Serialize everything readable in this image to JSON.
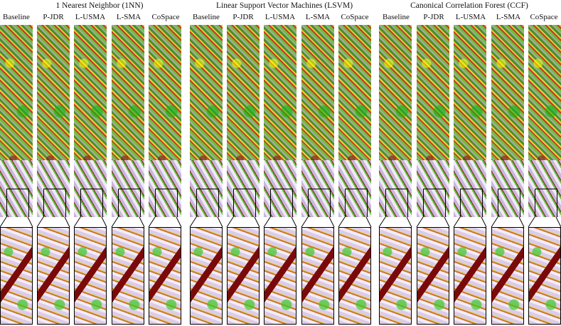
{
  "groups": [
    {
      "title": "1 Nearest Neighbor (1NN)",
      "methods": [
        "Baseline",
        "P-JDR",
        "L-USMA",
        "L-SMA",
        "CoSpace"
      ]
    },
    {
      "title": "Linear Support Vector Machines  (LSVM)",
      "methods": [
        "Baseline",
        "P-JDR",
        "L-USMA",
        "L-SMA",
        "CoSpace"
      ]
    },
    {
      "title": "Canonical Correlation Forest (CCF)",
      "methods": [
        "Baseline",
        "P-JDR",
        "L-USMA",
        "L-SMA",
        "CoSpace"
      ]
    }
  ]
}
